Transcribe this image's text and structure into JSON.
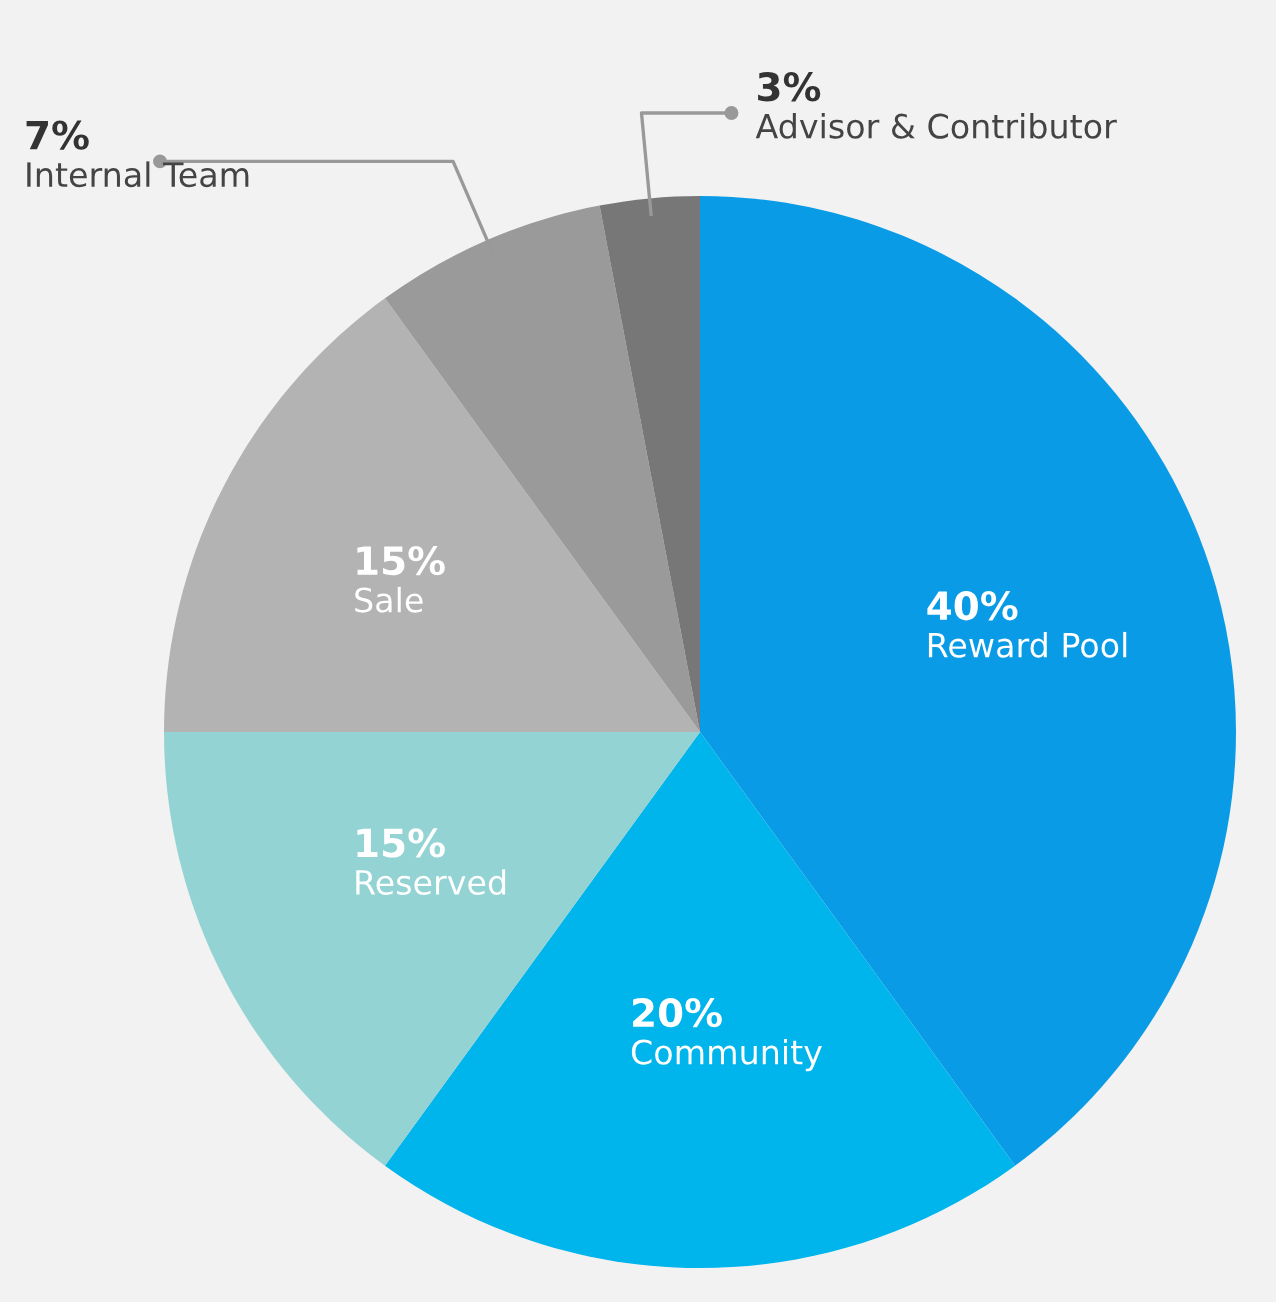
{
  "chart_data": {
    "type": "pie",
    "categories": [
      "Reward Pool",
      "Community",
      "Reserved",
      "Sale",
      "Internal Team",
      "Advisor & Contributor"
    ],
    "values": [
      40,
      20,
      15,
      15,
      7,
      3
    ],
    "value_labels": [
      "40%",
      "20%",
      "15%",
      "15%",
      "7%",
      "3%"
    ],
    "colors": [
      "#0a9be6",
      "#00b4ec",
      "#93d3d3",
      "#b3b3b3",
      "#9a9a9a",
      "#777777"
    ]
  }
}
